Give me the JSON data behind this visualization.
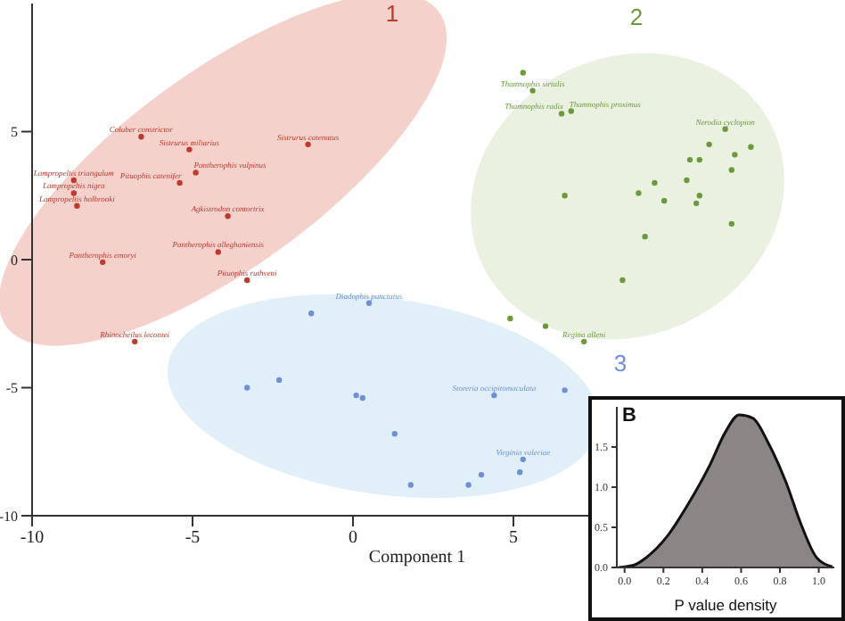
{
  "chart_data": [
    {
      "type": "scatter",
      "xlabel": "Component 1",
      "xlim": [
        -10,
        14
      ],
      "xticks": [
        -10,
        -5,
        0,
        5
      ],
      "ylim": [
        -10,
        10
      ],
      "yticks": [
        -10,
        -5,
        0,
        5
      ],
      "series": [
        {
          "name": "1",
          "color": "#c0392b",
          "marker": "circle",
          "x": [
            -6.6,
            -4.9,
            -8.7,
            -5.4,
            -8.7,
            -8.6,
            -4.2,
            -7.8,
            -3.3,
            -6.8,
            -1.4,
            -5.1,
            -3.9
          ],
          "values": [
            4.8,
            3.4,
            3.1,
            3.0,
            2.6,
            2.1,
            0.3,
            -0.1,
            -0.8,
            -3.2,
            4.5,
            4.3,
            1.7
          ],
          "value_labels": [
            "Coluber constrictor",
            "Pantherophis vulpinus",
            "Lampropeltis triangulum",
            "Pituophis catenifer",
            "Lampropeltis nigra",
            "Lampropeltis holbrooki",
            "Pantherophis alleghaniensis",
            "Pantherophis emoryi",
            "Pituophis ruthveni",
            "Rhinocheilus lecontei",
            "Sistrurus catenatus",
            "Sistrurus miliarius",
            "Agkistrodon contortrix"
          ]
        },
        {
          "name": "2",
          "color": "#6a9a3a",
          "marker": "circle",
          "x": [
            5.3,
            5.6,
            6.5,
            6.8,
            11.1,
            12.4,
            11.9,
            10.5,
            10.8,
            11.8,
            9.4,
            10.4,
            8.9,
            9.7,
            10.8,
            10.7,
            11.8,
            6.6,
            9.1,
            8.4,
            4.9,
            6.0,
            7.2,
            11.6
          ],
          "values": [
            7.3,
            6.6,
            5.7,
            5.8,
            4.5,
            4.4,
            4.1,
            3.9,
            3.9,
            3.5,
            3.0,
            3.1,
            2.6,
            2.3,
            2.5,
            2.2,
            1.4,
            2.5,
            0.9,
            -0.8,
            -2.3,
            -2.6,
            -3.2,
            5.1
          ],
          "value_labels": [
            null,
            "Thamnophis sirtalis",
            "Thamnophis radix",
            "Thamnophis proximus",
            null,
            null,
            null,
            null,
            null,
            null,
            null,
            null,
            null,
            null,
            null,
            null,
            null,
            null,
            null,
            null,
            null,
            null,
            "Regina alleni",
            "Nerodia cyclopion"
          ]
        },
        {
          "name": "3",
          "color": "#6f8fd6",
          "marker": "circle",
          "x": [
            -1.3,
            0.5,
            -3.3,
            -2.3,
            0.1,
            0.3,
            1.3,
            1.8,
            4.4,
            6.6,
            5.3,
            5.2,
            3.6,
            4.0
          ],
          "values": [
            -2.1,
            -1.7,
            -5.0,
            -4.7,
            -5.3,
            -5.4,
            -6.8,
            -8.8,
            -5.3,
            -5.1,
            -7.8,
            -8.3,
            -8.8,
            -8.4
          ],
          "value_labels": [
            null,
            "Diadophis punctatus",
            null,
            null,
            null,
            null,
            null,
            null,
            "Storeria occipitomaculata",
            null,
            "Virginia valeriae",
            null,
            null,
            null
          ]
        }
      ]
    },
    {
      "type": "area",
      "title": "B",
      "xlabel": "P value density",
      "xlim": [
        -0.04,
        1.08
      ],
      "xticks": [
        {
          "value": 0,
          "label": "0.0"
        },
        {
          "value": 0.2,
          "label": "0.2"
        },
        {
          "value": 0.4,
          "label": "0.4"
        },
        {
          "value": 0.6,
          "label": "0.6"
        },
        {
          "value": 0.8,
          "label": "0.8"
        },
        {
          "value": 1,
          "label": "1.0"
        }
      ],
      "ylim": [
        0,
        2
      ],
      "yticks": [
        {
          "value": 0,
          "label": "0.0"
        },
        {
          "value": 0.5,
          "label": "0.5"
        },
        {
          "value": 1,
          "label": "1.0"
        },
        {
          "value": 1.5,
          "label": "1.5"
        }
      ],
      "x": [
        -0.03,
        0.05,
        0.11,
        0.22,
        0.33,
        0.44,
        0.52,
        0.59,
        0.66,
        0.74,
        0.83,
        0.91,
        0.99,
        1.07
      ],
      "series": [
        {
          "color": "#8c8585",
          "values": [
            0,
            0.03,
            0.12,
            0.39,
            0.8,
            1.28,
            1.69,
            1.9,
            1.86,
            1.55,
            1.07,
            0.53,
            0.12,
            0.01
          ]
        }
      ]
    }
  ]
}
